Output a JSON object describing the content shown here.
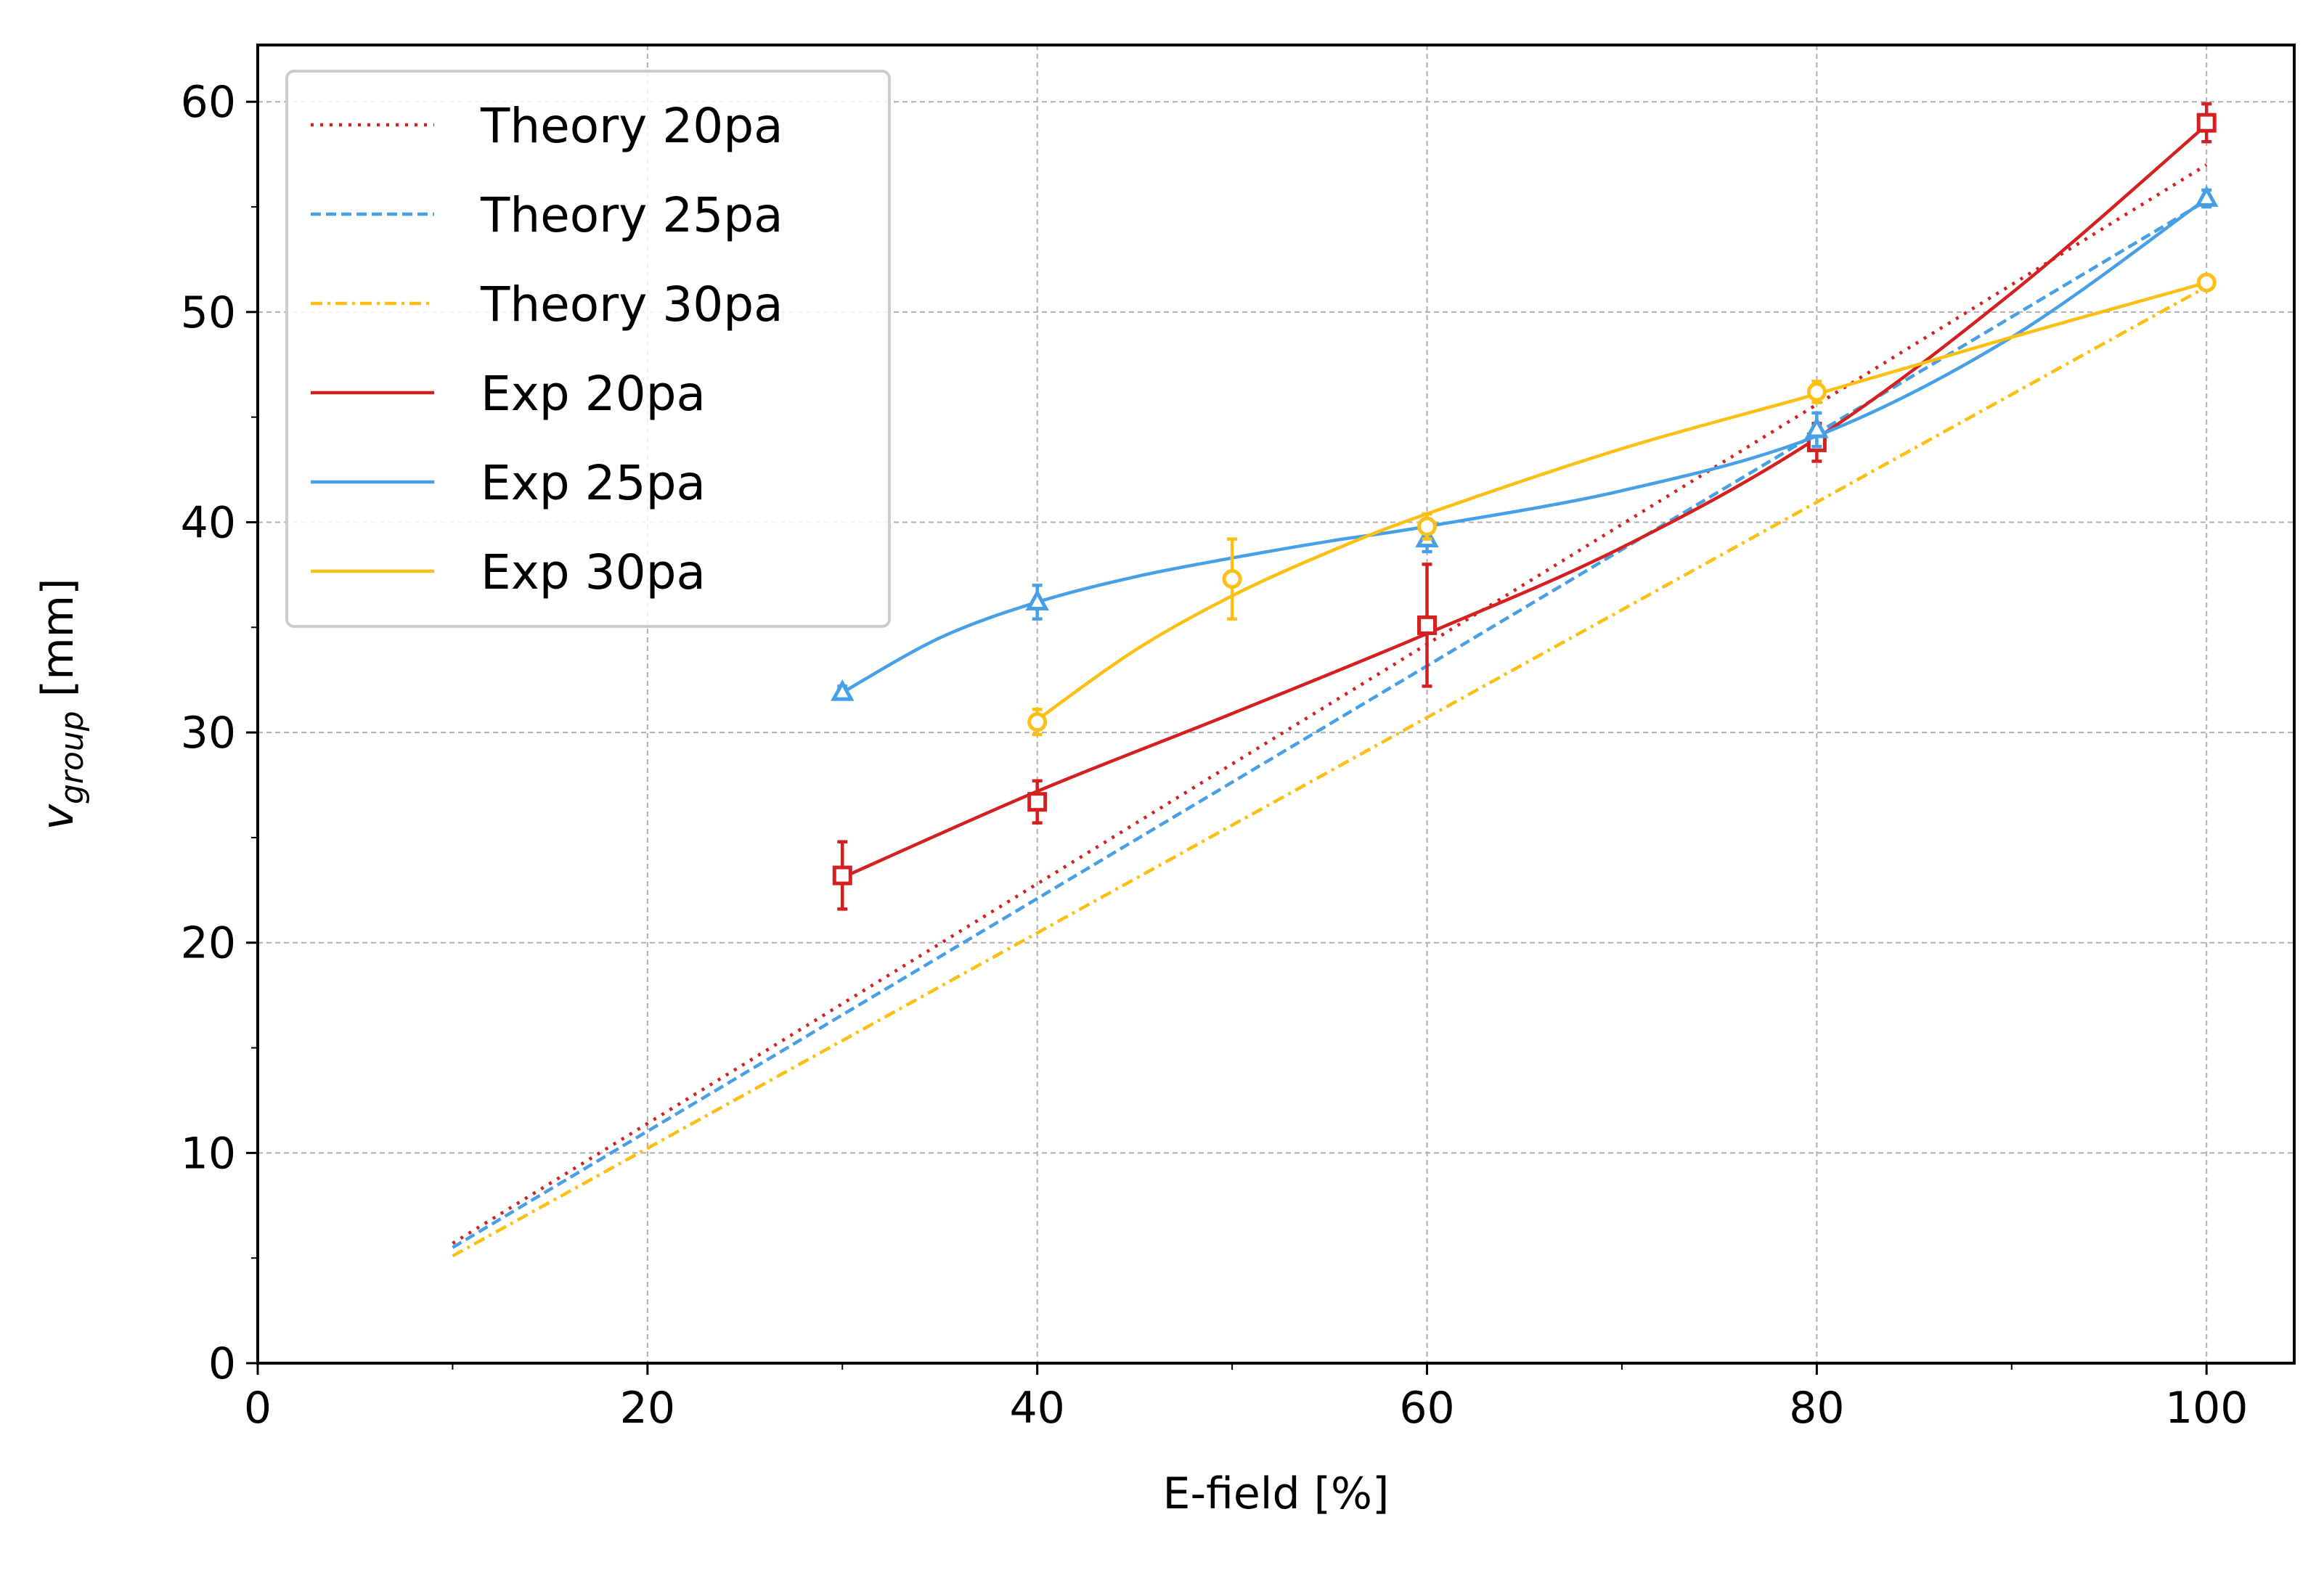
{
  "chart_data": {
    "type": "line",
    "title": "",
    "xlabel": "E-field [%]",
    "ylabel_main": "v",
    "ylabel_sub": "group",
    "ylabel_unit": " [mm]",
    "xlim": [
      0,
      104.5
    ],
    "ylim": [
      0,
      62.7
    ],
    "x_ticks": [
      "0",
      "20",
      "40",
      "60",
      "80",
      "100"
    ],
    "y_ticks": [
      "0",
      "10",
      "20",
      "30",
      "40",
      "50",
      "60"
    ],
    "grid": true,
    "legend_position": "upper-left",
    "colors": {
      "red": "#d42020",
      "blue": "#47a0e6",
      "yellow": "#fcbf12"
    },
    "series": [
      {
        "name": "Theory 20pa",
        "kind": "theory",
        "style": "dotted",
        "color": "#d42020",
        "x": [
          10,
          100
        ],
        "y": [
          5.7,
          57.0
        ]
      },
      {
        "name": "Theory 25pa",
        "kind": "theory",
        "style": "dashed",
        "color": "#47a0e6",
        "x": [
          10,
          100
        ],
        "y": [
          5.5,
          55.3
        ]
      },
      {
        "name": "Theory 30pa",
        "kind": "theory",
        "style": "dashdot",
        "color": "#fcbf12",
        "x": [
          10,
          100
        ],
        "y": [
          5.1,
          51.2
        ]
      },
      {
        "name": "Exp 20pa",
        "kind": "experiment",
        "style": "solid",
        "marker": "square",
        "color": "#d42020",
        "x": [
          30,
          40,
          60,
          80,
          100
        ],
        "y": [
          23.2,
          26.7,
          35.1,
          43.8,
          59.0
        ],
        "err": [
          1.6,
          1.0,
          2.9,
          0.9,
          0.9
        ],
        "fit": [
          [
            30,
            23.1
          ],
          [
            40,
            27.2
          ],
          [
            50,
            30.9
          ],
          [
            60,
            34.7
          ],
          [
            70,
            38.8
          ],
          [
            80,
            44.0
          ],
          [
            90,
            50.9
          ],
          [
            100,
            58.9
          ]
        ]
      },
      {
        "name": "Exp 25pa",
        "kind": "experiment",
        "style": "solid",
        "marker": "triangle",
        "color": "#47a0e6",
        "x": [
          30,
          40,
          60,
          80,
          100
        ],
        "y": [
          31.9,
          36.2,
          39.2,
          44.4,
          55.4
        ],
        "err": [
          0.3,
          0.8,
          0.6,
          0.8,
          0.4
        ],
        "fit": [
          [
            30,
            31.9
          ],
          [
            35,
            34.5
          ],
          [
            40,
            36.2
          ],
          [
            45,
            37.4
          ],
          [
            50,
            38.3
          ],
          [
            55,
            39.1
          ],
          [
            60,
            39.8
          ],
          [
            70,
            41.5
          ],
          [
            80,
            44.1
          ],
          [
            90,
            48.8
          ],
          [
            100,
            55.4
          ]
        ]
      },
      {
        "name": "Exp 30pa",
        "kind": "experiment",
        "style": "solid",
        "marker": "circle",
        "color": "#fcbf12",
        "x": [
          40,
          50,
          60,
          80,
          100
        ],
        "y": [
          30.5,
          37.3,
          39.8,
          46.2,
          51.4
        ],
        "err": [
          0.6,
          1.9,
          0.6,
          0.5,
          0.3
        ],
        "fit": [
          [
            40,
            30.6
          ],
          [
            45,
            33.9
          ],
          [
            50,
            36.5
          ],
          [
            55,
            38.6
          ],
          [
            60,
            40.4
          ],
          [
            70,
            43.5
          ],
          [
            80,
            46.1
          ],
          [
            90,
            48.8
          ],
          [
            100,
            51.4
          ]
        ]
      }
    ]
  }
}
